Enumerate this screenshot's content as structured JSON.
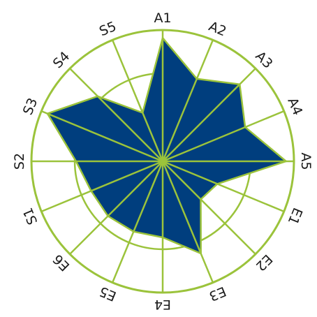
{
  "chart_data": {
    "type": "radar",
    "title": "",
    "categories": [
      "A1",
      "A2",
      "A3",
      "A4",
      "A5",
      "E1",
      "E2",
      "E3",
      "E4",
      "E5",
      "E6",
      "S1",
      "S2",
      "S3",
      "S4",
      "S5"
    ],
    "series": [
      {
        "values": [
          0.94,
          0.68,
          0.83,
          0.68,
          0.94,
          0.45,
          0.41,
          0.76,
          0.58,
          0.58,
          0.59,
          0.59,
          0.66,
          0.95,
          0.7,
          0.4
        ]
      }
    ],
    "rlim": [
      0,
      1
    ],
    "rings": [
      0.33,
      0.67,
      1.0
    ],
    "grid": true,
    "colors": {
      "fill": "#003e7e",
      "grid": "#9bc33b",
      "background": "#ffffff"
    }
  }
}
